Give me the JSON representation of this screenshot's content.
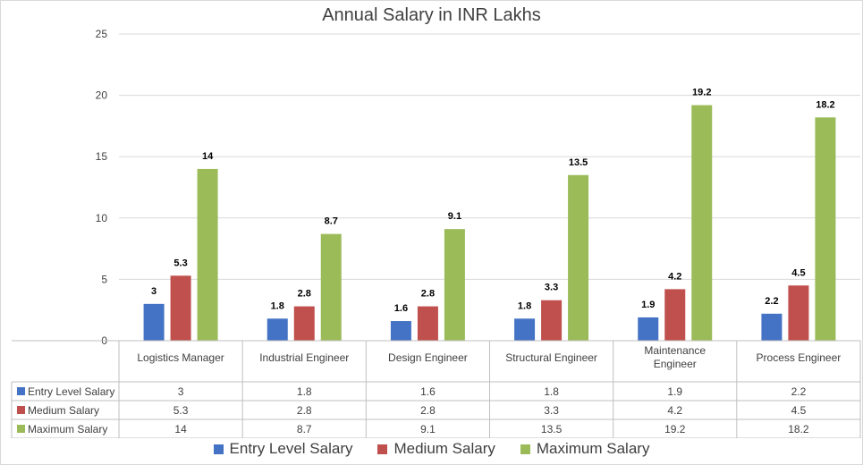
{
  "chart_data": {
    "type": "bar",
    "title": "Annual Salary in INR Lakhs",
    "xlabel": "",
    "ylabel": "",
    "ylim": [
      0,
      25
    ],
    "yticks": [
      0,
      5,
      10,
      15,
      20,
      25
    ],
    "grid": true,
    "legend_position": "bottom",
    "data_table": true,
    "categories": [
      "Logistics Manager",
      "Industrial Engineer",
      "Design Engineer",
      "Structural Engineer",
      "Maintenance Engineer",
      "Process Engineer"
    ],
    "category_lines": [
      [
        "Logistics Manager"
      ],
      [
        "Industrial Engineer"
      ],
      [
        "Design Engineer"
      ],
      [
        "Structural Engineer"
      ],
      [
        "Maintenance",
        "Engineer"
      ],
      [
        "Process Engineer"
      ]
    ],
    "series": [
      {
        "name": "Entry Level Salary",
        "color": "#4472c4",
        "values": [
          3,
          1.8,
          1.6,
          1.8,
          1.9,
          2.2
        ],
        "labels": [
          "3",
          "1.8",
          "1.6",
          "1.8",
          "1.9",
          "2.2"
        ]
      },
      {
        "name": "Medium Salary",
        "color": "#c0504d",
        "values": [
          5.3,
          2.8,
          2.8,
          3.3,
          4.2,
          4.5
        ],
        "labels": [
          "5.3",
          "2.8",
          "2.8",
          "3.3",
          "4.2",
          "4.5"
        ]
      },
      {
        "name": "Maximum Salary",
        "color": "#9bbb59",
        "values": [
          14,
          8.7,
          9.1,
          13.5,
          19.2,
          18.2
        ],
        "labels": [
          "14",
          "8.7",
          "9.1",
          "13.5",
          "19.2",
          "18.2"
        ]
      }
    ]
  }
}
